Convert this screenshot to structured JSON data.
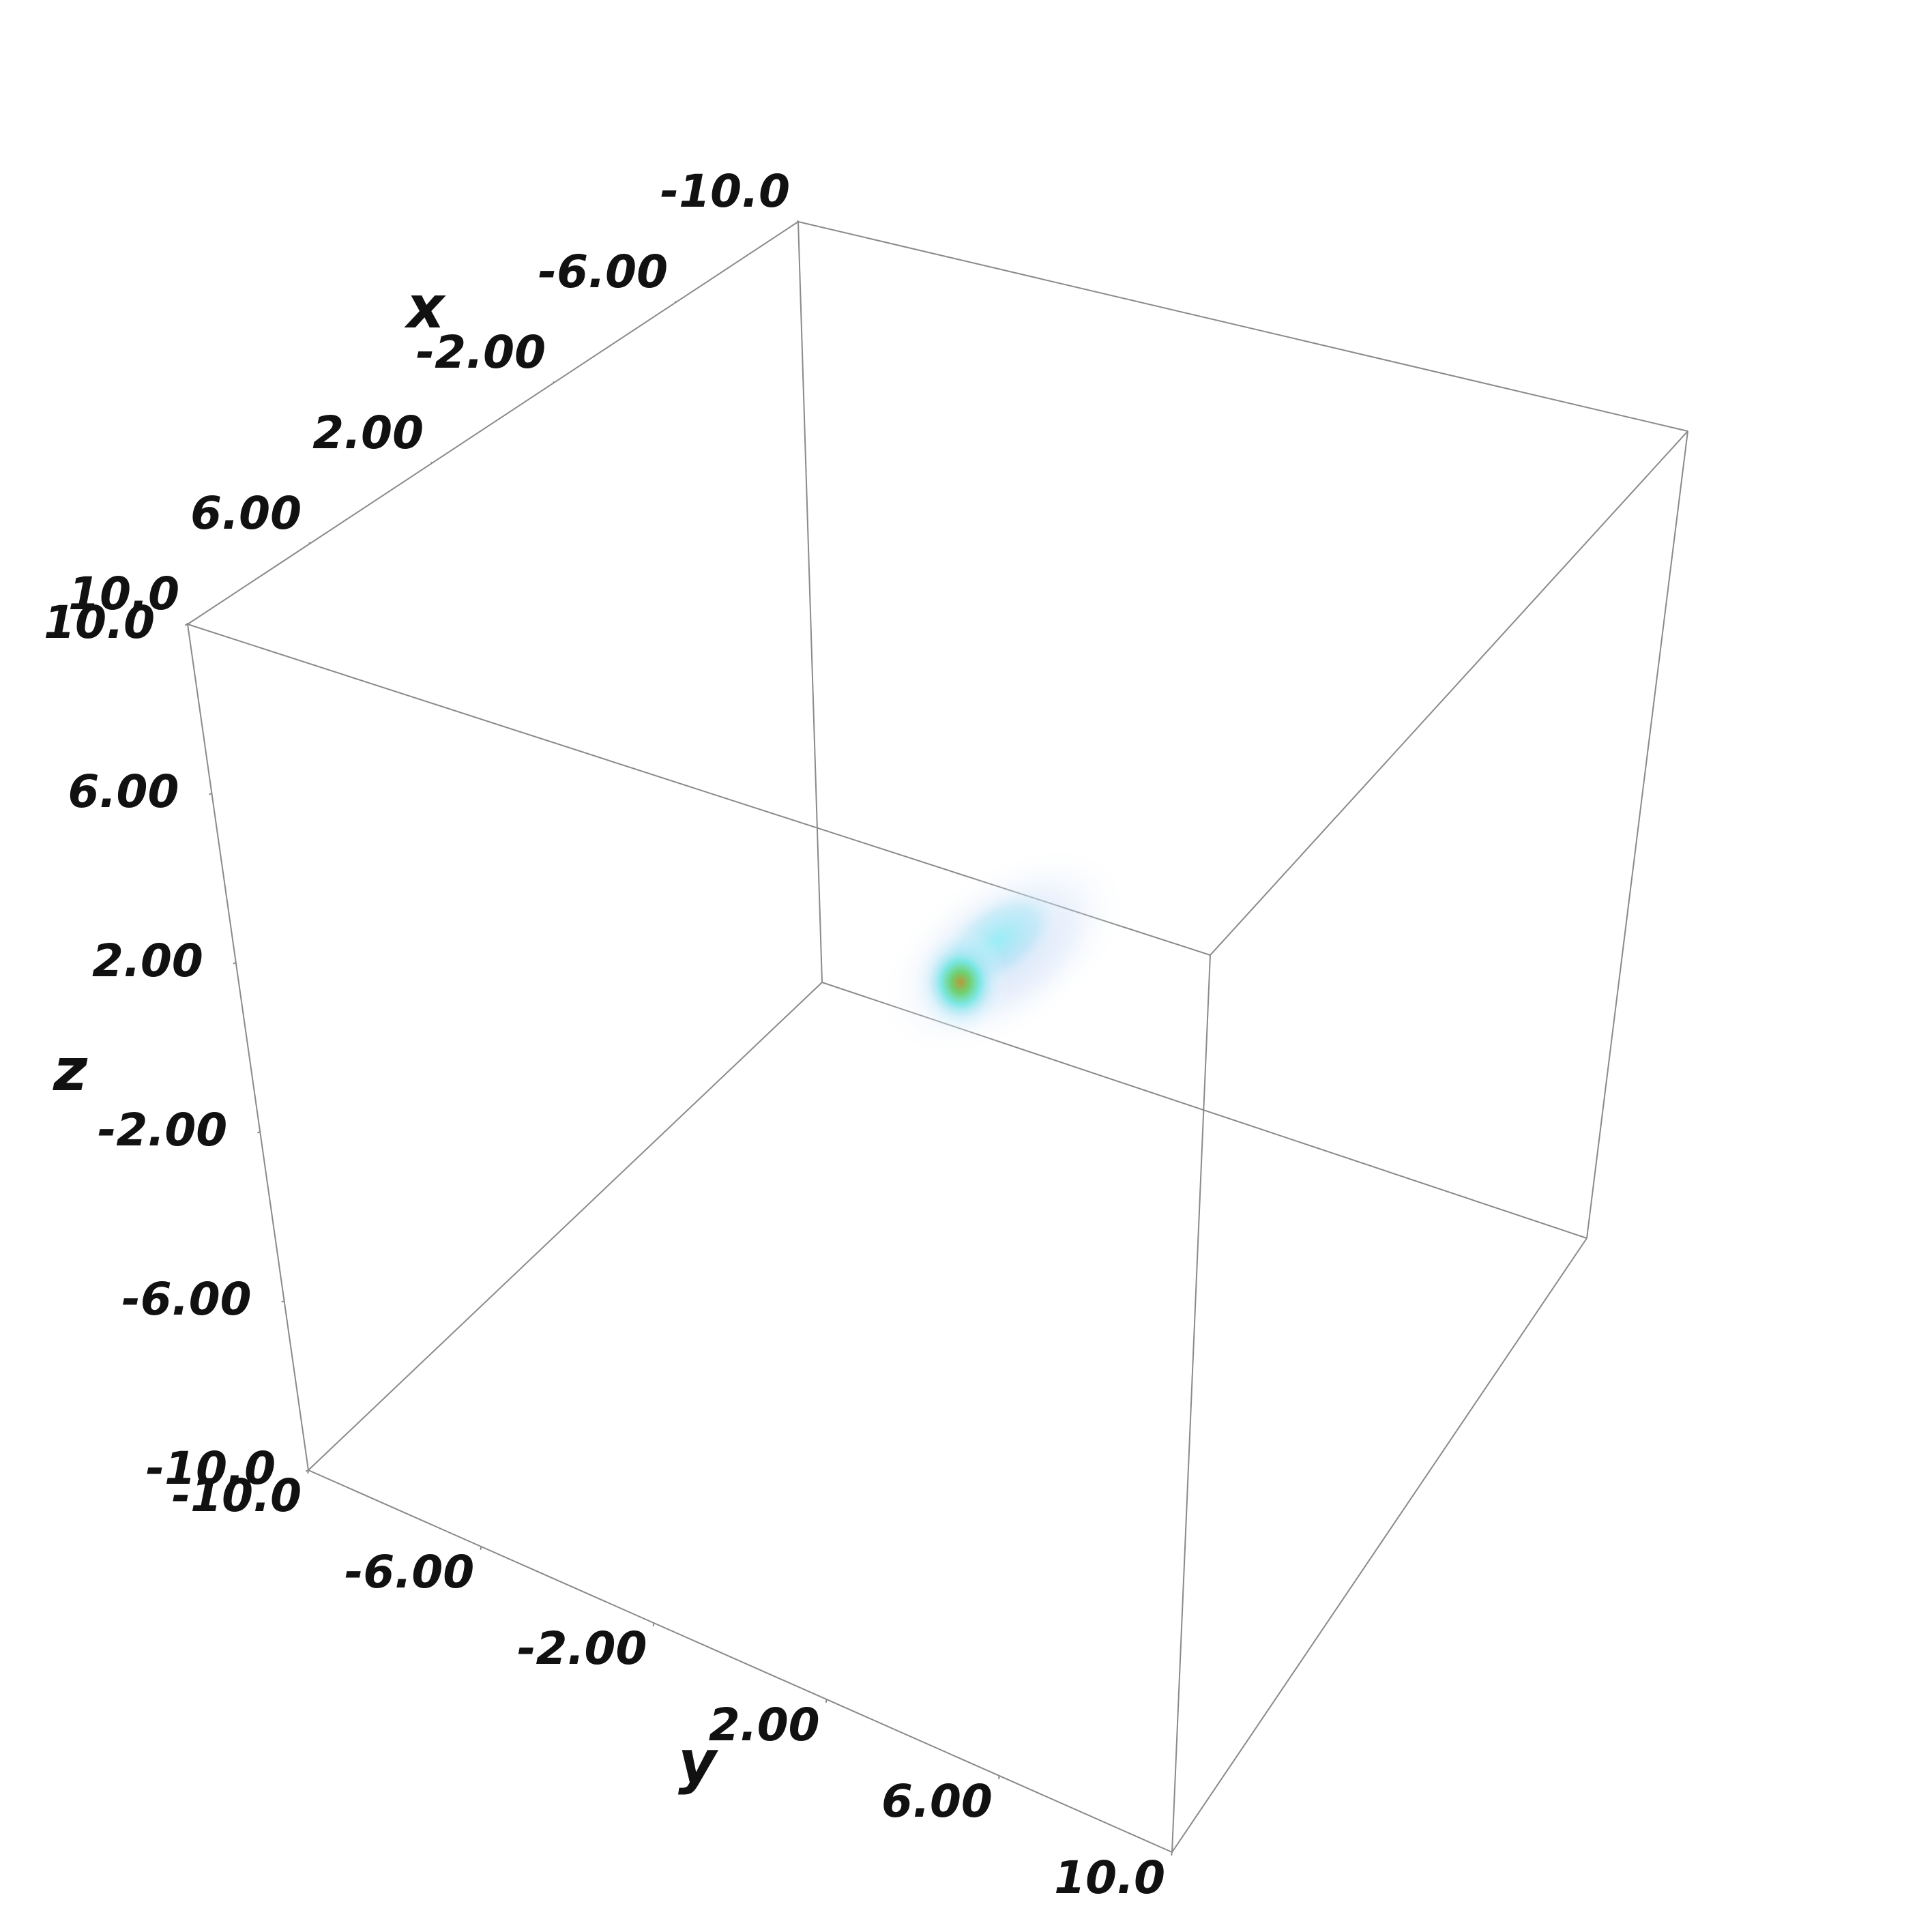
{
  "chart_data": {
    "type": "volume",
    "title": "",
    "axes": {
      "x": {
        "label": "x",
        "range": [
          -10,
          10
        ],
        "ticks": [
          "-10.0",
          "-6.00",
          "-2.00",
          "2.00",
          "6.00",
          "10.0"
        ]
      },
      "y": {
        "label": "y",
        "range": [
          -10,
          10
        ],
        "ticks": [
          "-10.0",
          "-6.00",
          "-2.00",
          "2.00",
          "6.00",
          "10.0"
        ]
      },
      "z": {
        "label": "z",
        "range": [
          -10,
          10
        ],
        "ticks": [
          "-10.0",
          "-6.00",
          "-2.00",
          "2.00",
          "6.00",
          "10.0"
        ]
      }
    },
    "grid": false,
    "legend": "none",
    "colors": {
      "core": "#c8a23a",
      "inner": "#5fd07a",
      "shell": "#7ee8f0",
      "halo": "#a9c4ee",
      "edge": "#8a8a8a"
    }
  }
}
